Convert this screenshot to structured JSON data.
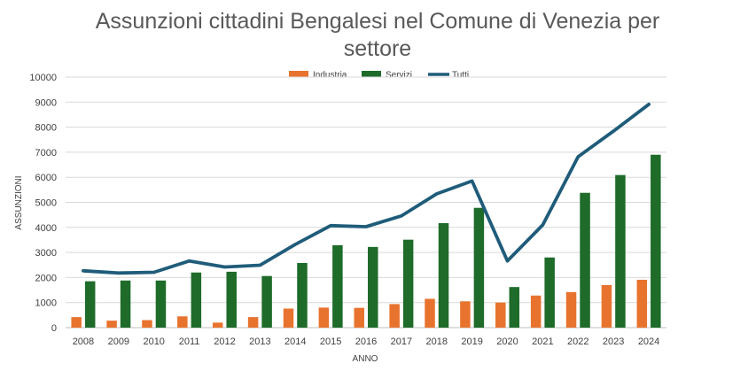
{
  "chart_data": {
    "type": "bar",
    "title_line1": "Assunzioni cittadini Bengalesi nel Comune di Venezia per",
    "title_line2": "settore",
    "xlabel": "ANNO",
    "ylabel": "ASSUNZIONI",
    "ylim": [
      0,
      10000
    ],
    "yticks": [
      0,
      1000,
      2000,
      3000,
      4000,
      5000,
      6000,
      7000,
      8000,
      9000,
      10000
    ],
    "grid": true,
    "legend_position": "top",
    "categories": [
      "2008",
      "2009",
      "2010",
      "2011",
      "2012",
      "2013",
      "2014",
      "2015",
      "2016",
      "2017",
      "2018",
      "2019",
      "2020",
      "2021",
      "2022",
      "2023",
      "2024"
    ],
    "series": [
      {
        "name": "Industria",
        "kind": "bar",
        "color": "#E8732E",
        "values": [
          420,
          280,
          300,
          450,
          200,
          420,
          760,
          800,
          790,
          940,
          1150,
          1050,
          1000,
          1280,
          1420,
          1700,
          1910
        ]
      },
      {
        "name": "Servizi",
        "kind": "bar",
        "color": "#1E6B2A",
        "values": [
          1850,
          1880,
          1880,
          2200,
          2230,
          2060,
          2580,
          3290,
          3220,
          3510,
          4170,
          4780,
          1620,
          2800,
          5380,
          6090,
          6900
        ]
      },
      {
        "name": "Tutti",
        "kind": "line",
        "color": "#1F5C7A",
        "values": [
          2270,
          2180,
          2210,
          2660,
          2420,
          2490,
          3320,
          4070,
          4030,
          4460,
          5340,
          5850,
          2660,
          4100,
          6820,
          7840,
          8910
        ]
      }
    ]
  }
}
